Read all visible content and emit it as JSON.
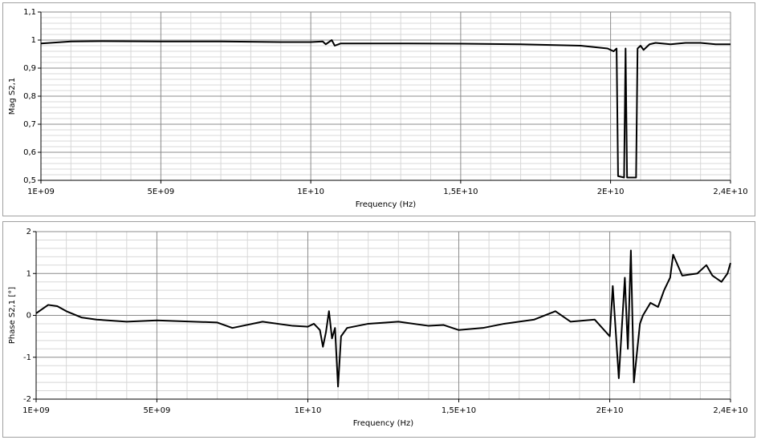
{
  "chart_data": [
    {
      "type": "line",
      "ylabel": "Mag S2,1",
      "xlabel": "Frequency (Hz)",
      "color": "#000000",
      "grid": true,
      "xlim": [
        1000000000.0,
        24000000000.0
      ],
      "xticks": [
        {
          "value": 1000000000.0,
          "label": "1E+09"
        },
        {
          "value": 5000000000.0,
          "label": "5E+09"
        },
        {
          "value": 10000000000.0,
          "label": "1E+10"
        },
        {
          "value": 15000000000.0,
          "label": "1,5E+10"
        },
        {
          "value": 20000000000.0,
          "label": "2E+10"
        },
        {
          "value": 24000000000.0,
          "label": "2,4E+10"
        }
      ],
      "xminorticks": [
        2000000000.0,
        3000000000.0,
        4000000000.0,
        6000000000.0,
        7000000000.0,
        8000000000.0,
        9000000000.0,
        11000000000.0,
        12000000000.0,
        13000000000.0,
        14000000000.0,
        16000000000.0,
        17000000000.0,
        18000000000.0,
        19000000000.0,
        21000000000.0,
        22000000000.0,
        23000000000.0
      ],
      "ylim": [
        0.5,
        1.1
      ],
      "yticks": [
        {
          "value": 0.5,
          "label": "0,5"
        },
        {
          "value": 0.6,
          "label": "0,6"
        },
        {
          "value": 0.7,
          "label": "0,7"
        },
        {
          "value": 0.8,
          "label": "0,8"
        },
        {
          "value": 0.9,
          "label": "0,9"
        },
        1,
        {
          "value": 1.1,
          "label": "1,1"
        }
      ],
      "yminorticks": [
        0.52,
        0.54,
        0.56,
        0.58,
        0.62,
        0.64,
        0.66,
        0.68,
        0.72,
        0.74,
        0.76,
        0.78,
        0.82,
        0.84,
        0.86,
        0.88,
        0.92,
        0.94,
        0.96,
        0.98,
        1.02,
        1.04,
        1.06,
        1.08
      ],
      "x": [
        1000000000.0,
        2000000000.0,
        3000000000.0,
        5000000000.0,
        7000000000.0,
        9000000000.0,
        10000000000.0,
        10400000000.0,
        10500000000.0,
        10700000000.0,
        10800000000.0,
        11000000000.0,
        13000000000.0,
        15000000000.0,
        17000000000.0,
        19000000000.0,
        19900000000.0,
        20100000000.0,
        20200000000.0,
        20250000000.0,
        20450000000.0,
        20500000000.0,
        20550000000.0,
        20850000000.0,
        20900000000.0,
        21000000000.0,
        21100000000.0,
        21300000000.0,
        21500000000.0,
        22000000000.0,
        22500000000.0,
        23000000000.0,
        23500000000.0,
        24000000000.0
      ],
      "values": [
        0.988,
        0.995,
        0.996,
        0.995,
        0.995,
        0.993,
        0.993,
        0.995,
        0.985,
        1.0,
        0.98,
        0.988,
        0.988,
        0.987,
        0.985,
        0.98,
        0.97,
        0.96,
        0.97,
        0.515,
        0.51,
        0.97,
        0.51,
        0.51,
        0.97,
        0.98,
        0.965,
        0.985,
        0.99,
        0.985,
        0.99,
        0.99,
        0.985,
        0.985
      ]
    },
    {
      "type": "line",
      "ylabel": "Phase S2,1 [°]",
      "xlabel": "Frequency (Hz)",
      "color": "#000000",
      "grid": true,
      "xlim": [
        1000000000.0,
        24000000000.0
      ],
      "xticks": [
        {
          "value": 1000000000.0,
          "label": "1E+09"
        },
        {
          "value": 5000000000.0,
          "label": "5E+09"
        },
        {
          "value": 10000000000.0,
          "label": "1E+10"
        },
        {
          "value": 15000000000.0,
          "label": "1,5E+10"
        },
        {
          "value": 20000000000.0,
          "label": "2E+10"
        },
        {
          "value": 24000000000.0,
          "label": "2,4E+10"
        }
      ],
      "xminorticks": [
        2000000000.0,
        3000000000.0,
        4000000000.0,
        6000000000.0,
        7000000000.0,
        8000000000.0,
        9000000000.0,
        11000000000.0,
        12000000000.0,
        13000000000.0,
        14000000000.0,
        16000000000.0,
        17000000000.0,
        18000000000.0,
        19000000000.0,
        21000000000.0,
        22000000000.0,
        23000000000.0
      ],
      "ylim": [
        -2,
        2
      ],
      "yticks": [
        -2,
        -1,
        0,
        1,
        2
      ],
      "yminorticks": [
        -1.8,
        -1.6,
        -1.4,
        -1.2,
        -0.8,
        -0.6,
        -0.4,
        -0.2,
        0.2,
        0.4,
        0.6,
        0.8,
        1.2,
        1.4,
        1.6,
        1.8
      ],
      "x": [
        1000000000.0,
        1400000000.0,
        1700000000.0,
        2000000000.0,
        2500000000.0,
        3000000000.0,
        4000000000.0,
        5000000000.0,
        7000000000.0,
        7500000000.0,
        8500000000.0,
        9500000000.0,
        10000000000.0,
        10200000000.0,
        10400000000.0,
        10500000000.0,
        10600000000.0,
        10700000000.0,
        10800000000.0,
        10900000000.0,
        11000000000.0,
        11100000000.0,
        11300000000.0,
        12000000000.0,
        13000000000.0,
        14000000000.0,
        14500000000.0,
        15000000000.0,
        15800000000.0,
        16500000000.0,
        17500000000.0,
        18200000000.0,
        18700000000.0,
        19500000000.0,
        20000000000.0,
        20100000000.0,
        20300000000.0,
        20500000000.0,
        20600000000.0,
        20700000000.0,
        20800000000.0,
        21000000000.0,
        21100000000.0,
        21350000000.0,
        21600000000.0,
        21800000000.0,
        22000000000.0,
        22100000000.0,
        22400000000.0,
        22900000000.0,
        23200000000.0,
        23400000000.0,
        23700000000.0,
        23900000000.0,
        24000000000.0
      ],
      "values": [
        0.05,
        0.25,
        0.22,
        0.1,
        -0.05,
        -0.1,
        -0.15,
        -0.12,
        -0.17,
        -0.3,
        -0.15,
        -0.25,
        -0.27,
        -0.2,
        -0.35,
        -0.75,
        -0.4,
        0.1,
        -0.55,
        -0.3,
        -1.7,
        -0.5,
        -0.3,
        -0.2,
        -0.15,
        -0.25,
        -0.23,
        -0.35,
        -0.3,
        -0.2,
        -0.1,
        0.1,
        -0.15,
        -0.1,
        -0.5,
        0.7,
        -1.5,
        0.9,
        -0.8,
        1.55,
        -1.6,
        -0.2,
        0.0,
        0.3,
        0.2,
        0.6,
        0.9,
        1.45,
        0.95,
        1.0,
        1.2,
        0.95,
        0.8,
        1.0,
        1.25
      ]
    }
  ]
}
